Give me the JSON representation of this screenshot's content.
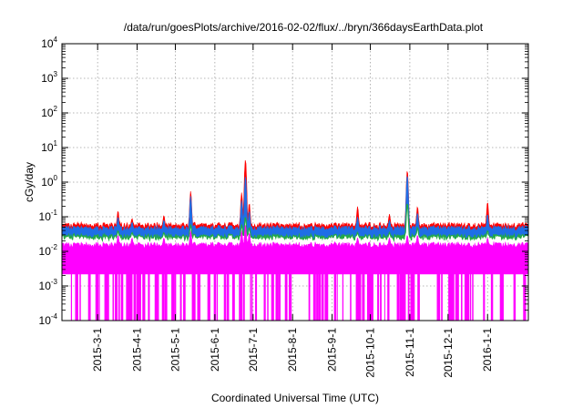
{
  "chart_data": {
    "type": "area",
    "title": "/data/run/goesPlots/archive/2016-02-02/flux/../bryn/366daysEarthData.plot",
    "xlabel": "Coordinated Universal Time (UTC)",
    "ylabel": "cGy/day",
    "y_scale": "log",
    "ylim": [
      0.0001,
      10000
    ],
    "xlim": [
      "2015-02-01",
      "2016-02-02"
    ],
    "grid": true,
    "y_ticks": [
      {
        "base": "10",
        "exp": "-4",
        "value": 0.0001
      },
      {
        "base": "10",
        "exp": "-3",
        "value": 0.001
      },
      {
        "base": "10",
        "exp": "-2",
        "value": 0.01
      },
      {
        "base": "10",
        "exp": "-1",
        "value": 0.1
      },
      {
        "base": "10",
        "exp": "0",
        "value": 1
      },
      {
        "base": "10",
        "exp": "1",
        "value": 10
      },
      {
        "base": "10",
        "exp": "2",
        "value": 100
      },
      {
        "base": "10",
        "exp": "3",
        "value": 1000
      },
      {
        "base": "10",
        "exp": "4",
        "value": 10000
      }
    ],
    "x_ticks": [
      "2015-3-1",
      "2015-4-1",
      "2015-5-1",
      "2015-6-1",
      "2015-7-1",
      "2015-8-1",
      "2015-9-1",
      "2015-10-1",
      "2015-11-1",
      "2015-12-1",
      "2016-1-1"
    ],
    "series": [
      {
        "color": "#ff0000",
        "baseline": 0.055
      },
      {
        "color": "#1e6ee6",
        "baseline": 0.045
      },
      {
        "color": "#22aa44",
        "baseline": 0.025
      },
      {
        "color": "#ff00ff",
        "baseline": 0.015,
        "floor": 0.0022
      }
    ],
    "peaks": [
      {
        "date": "2015-03-17",
        "red": 0.15,
        "blue": 0.1,
        "green": 0.04,
        "magenta": 0.03
      },
      {
        "date": "2015-03-28",
        "red": 0.09,
        "blue": 0.07,
        "green": 0.035,
        "magenta": 0.025
      },
      {
        "date": "2015-04-22",
        "red": 0.11,
        "blue": 0.08,
        "green": 0.035,
        "magenta": 0.025
      },
      {
        "date": "2015-05-13",
        "red": 0.55,
        "blue": 0.4,
        "green": 0.06,
        "magenta": 0.04
      },
      {
        "date": "2015-06-22",
        "red": 0.5,
        "blue": 0.3,
        "green": 0.06,
        "magenta": 0.04
      },
      {
        "date": "2015-06-25",
        "red": 4.5,
        "blue": 1.5,
        "green": 0.1,
        "magenta": 0.06
      },
      {
        "date": "2015-06-28",
        "red": 0.25,
        "blue": 0.15,
        "green": 0.05,
        "magenta": 0.035
      },
      {
        "date": "2015-09-21",
        "red": 0.2,
        "blue": 0.1,
        "green": 0.035,
        "magenta": 0.025
      },
      {
        "date": "2015-10-16",
        "red": 0.12,
        "blue": 0.08,
        "green": 0.035,
        "magenta": 0.025
      },
      {
        "date": "2015-10-30",
        "red": 2.2,
        "blue": 1.6,
        "green": 0.25,
        "magenta": 0.03
      },
      {
        "date": "2015-11-07",
        "red": 0.2,
        "blue": 0.13,
        "green": 0.05,
        "magenta": 0.03
      },
      {
        "date": "2016-01-01",
        "red": 0.27,
        "blue": 0.12,
        "green": 0.04,
        "magenta": 0.025
      }
    ]
  }
}
